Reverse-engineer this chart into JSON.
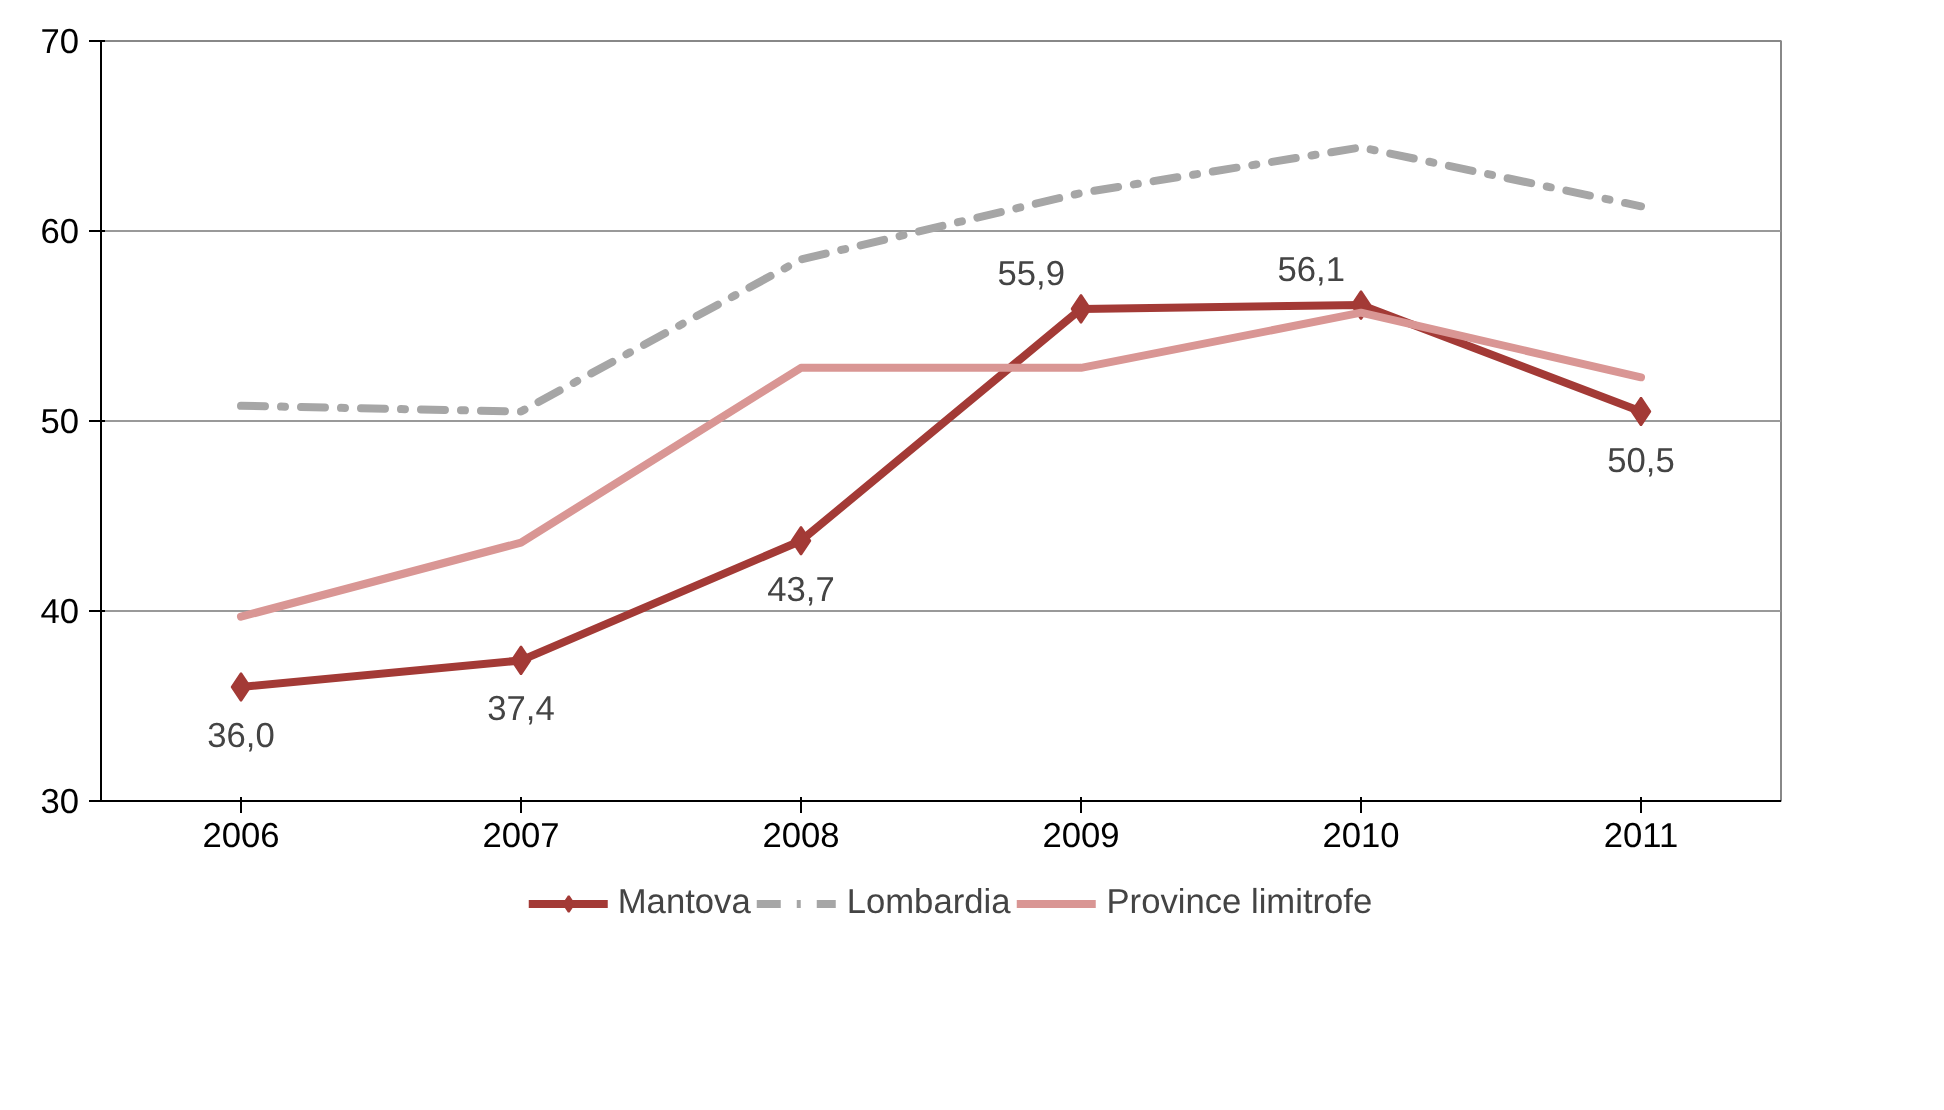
{
  "chart_data": {
    "type": "line",
    "categories": [
      "2006",
      "2007",
      "2008",
      "2009",
      "2010",
      "2011"
    ],
    "series": [
      {
        "name": "Mantova",
        "color": "#a33a36",
        "values": [
          36.0,
          37.4,
          43.7,
          55.9,
          56.1,
          50.5
        ],
        "marker": "diamond",
        "line_style": "solid",
        "value_labels": [
          "36,0",
          "37,4",
          "43,7",
          "55,9",
          "56,1",
          "50,5"
        ]
      },
      {
        "name": "Lombardia",
        "color": "#a6a6a6",
        "values": [
          50.8,
          50.5,
          58.5,
          62.0,
          64.4,
          61.3
        ],
        "marker": "none",
        "line_style": "dashed"
      },
      {
        "name": "Province limitrofe",
        "color": "#d99694",
        "values": [
          39.7,
          43.6,
          52.8,
          52.8,
          55.7,
          52.3
        ],
        "marker": "none",
        "line_style": "solid"
      }
    ],
    "ylim": [
      30,
      70
    ],
    "yticks": [
      30,
      40,
      50,
      60,
      70
    ],
    "grid": "y",
    "legend": "bottom"
  }
}
